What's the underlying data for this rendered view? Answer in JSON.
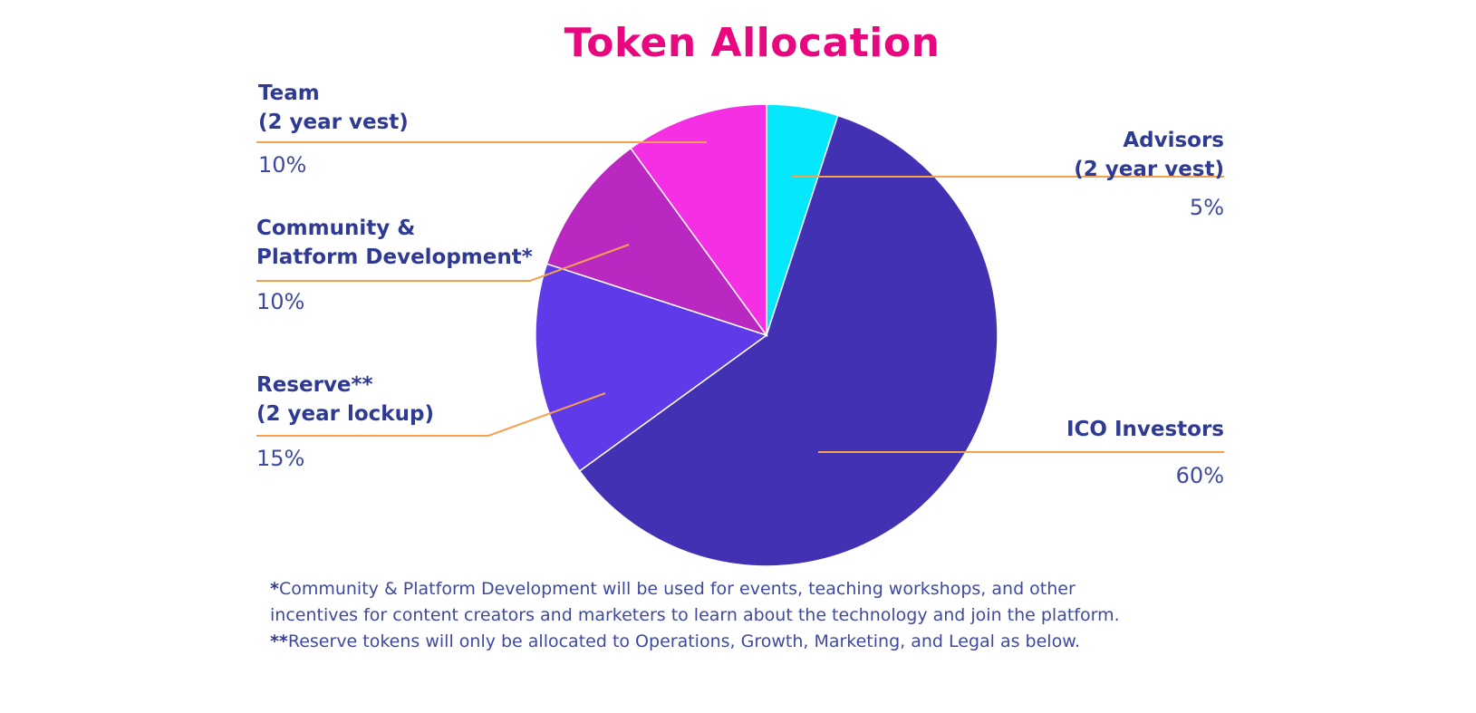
{
  "chart_data": {
    "type": "pie",
    "title": "Token Allocation",
    "start_angle_deg": 0,
    "direction": "clockwise",
    "slices": [
      {
        "key": "advisors",
        "label_lines": [
          "Advisors",
          "(2 year vest)"
        ],
        "value": 5,
        "value_label": "5%",
        "color": "#05e8fb"
      },
      {
        "key": "ico",
        "label_lines": [
          "ICO Investors"
        ],
        "value": 60,
        "value_label": "60%",
        "color": "#4331b4"
      },
      {
        "key": "reserve",
        "label_lines": [
          "Reserve**",
          "(2 year lockup)"
        ],
        "value": 15,
        "value_label": "15%",
        "color": "#5f3ae8"
      },
      {
        "key": "community",
        "label_lines": [
          "Community &",
          "Platform Development*"
        ],
        "value": 10,
        "value_label": "10%",
        "color": "#b929c1"
      },
      {
        "key": "team",
        "label_lines": [
          "Team",
          "(2 year vest)"
        ],
        "value": 10,
        "value_label": "10%",
        "color": "#f42fe4"
      }
    ],
    "footnotes": [
      {
        "mark": "*",
        "lines": [
          "Community & Platform Development will be used for events, teaching workshops, and other",
          "incentives for content creators and marketers to learn about the technology and join the platform."
        ]
      },
      {
        "mark": "**",
        "lines": [
          "Reserve tokens will only be allocated to Operations, Growth, Marketing, and Legal as below."
        ]
      }
    ],
    "colors": {
      "title": "#e8077f",
      "label": "#2e3a93",
      "leader_line": "#f6a04d"
    }
  }
}
